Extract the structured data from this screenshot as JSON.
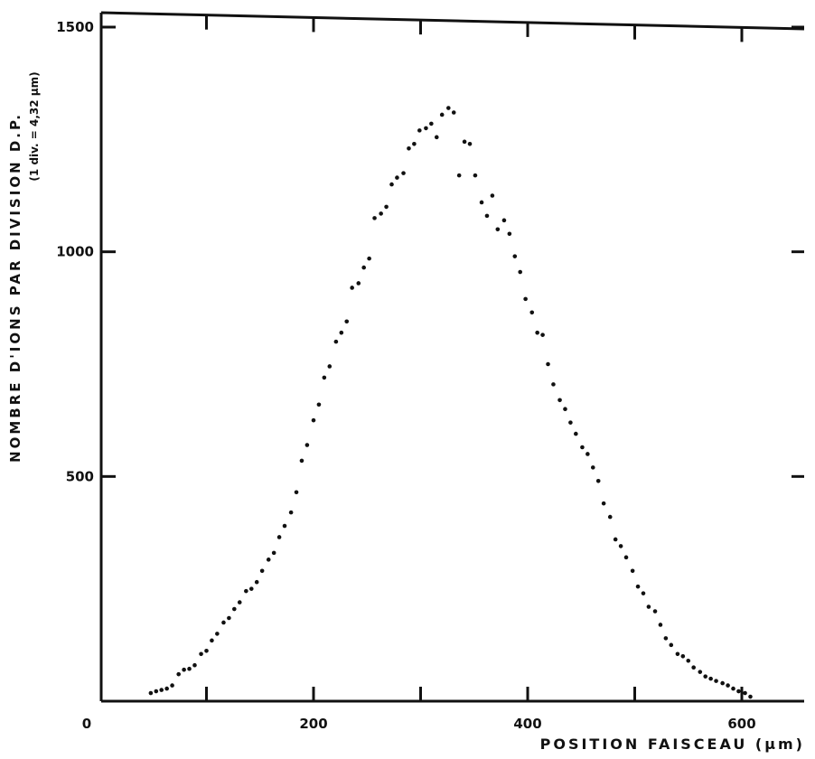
{
  "chart_data": {
    "type": "scatter",
    "xlabel": "POSITION  FAISCEAU (µm)",
    "ylabel": "NOMBRE D'IONS PAR DIVISION D.P.",
    "ylabel_sub": "(1 div. = 4,32 µm)",
    "x_ticks": [
      0,
      200,
      400,
      600
    ],
    "y_ticks": [
      500,
      1000,
      1500
    ],
    "xlim": [
      0,
      660
    ],
    "ylim": [
      0,
      1500
    ],
    "grid": false,
    "series": [
      {
        "points": [
          [
            48,
            18
          ],
          [
            53,
            22
          ],
          [
            58,
            25
          ],
          [
            63,
            28
          ],
          [
            68,
            35
          ],
          [
            74,
            60
          ],
          [
            79,
            70
          ],
          [
            84,
            72
          ],
          [
            89,
            80
          ],
          [
            95,
            105
          ],
          [
            100,
            112
          ],
          [
            105,
            135
          ],
          [
            110,
            150
          ],
          [
            116,
            175
          ],
          [
            121,
            185
          ],
          [
            126,
            205
          ],
          [
            131,
            220
          ],
          [
            137,
            245
          ],
          [
            142,
            250
          ],
          [
            147,
            265
          ],
          [
            152,
            290
          ],
          [
            158,
            315
          ],
          [
            163,
            330
          ],
          [
            168,
            365
          ],
          [
            173,
            390
          ],
          [
            179,
            420
          ],
          [
            184,
            465
          ],
          [
            189,
            535
          ],
          [
            194,
            570
          ],
          [
            200,
            625
          ],
          [
            205,
            660
          ],
          [
            210,
            720
          ],
          [
            215,
            745
          ],
          [
            221,
            800
          ],
          [
            226,
            820
          ],
          [
            231,
            845
          ],
          [
            236,
            920
          ],
          [
            242,
            930
          ],
          [
            247,
            965
          ],
          [
            252,
            985
          ],
          [
            257,
            1075
          ],
          [
            263,
            1085
          ],
          [
            268,
            1100
          ],
          [
            273,
            1150
          ],
          [
            278,
            1165
          ],
          [
            284,
            1175
          ],
          [
            289,
            1230
          ],
          [
            294,
            1240
          ],
          [
            299,
            1270
          ],
          [
            305,
            1275
          ],
          [
            310,
            1285
          ],
          [
            315,
            1255
          ],
          [
            320,
            1305
          ],
          [
            326,
            1320
          ],
          [
            331,
            1310
          ],
          [
            336,
            1170
          ],
          [
            341,
            1245
          ],
          [
            346,
            1240
          ],
          [
            351,
            1170
          ],
          [
            357,
            1110
          ],
          [
            362,
            1080
          ],
          [
            367,
            1125
          ],
          [
            372,
            1050
          ],
          [
            378,
            1070
          ],
          [
            383,
            1040
          ],
          [
            388,
            990
          ],
          [
            393,
            955
          ],
          [
            398,
            895
          ],
          [
            404,
            865
          ],
          [
            409,
            820
          ],
          [
            414,
            815
          ],
          [
            419,
            750
          ],
          [
            424,
            705
          ],
          [
            430,
            670
          ],
          [
            435,
            650
          ],
          [
            440,
            620
          ],
          [
            445,
            595
          ],
          [
            451,
            565
          ],
          [
            456,
            550
          ],
          [
            461,
            520
          ],
          [
            466,
            490
          ],
          [
            471,
            440
          ],
          [
            477,
            410
          ],
          [
            482,
            360
          ],
          [
            487,
            345
          ],
          [
            492,
            320
          ],
          [
            498,
            290
          ],
          [
            503,
            255
          ],
          [
            508,
            240
          ],
          [
            513,
            210
          ],
          [
            519,
            200
          ],
          [
            524,
            170
          ],
          [
            529,
            140
          ],
          [
            534,
            125
          ],
          [
            540,
            105
          ],
          [
            545,
            100
          ],
          [
            550,
            90
          ],
          [
            555,
            75
          ],
          [
            561,
            65
          ],
          [
            566,
            55
          ],
          [
            571,
            50
          ],
          [
            576,
            45
          ],
          [
            582,
            40
          ],
          [
            587,
            35
          ],
          [
            592,
            28
          ],
          [
            597,
            22
          ],
          [
            603,
            18
          ],
          [
            608,
            10
          ]
        ]
      }
    ]
  }
}
